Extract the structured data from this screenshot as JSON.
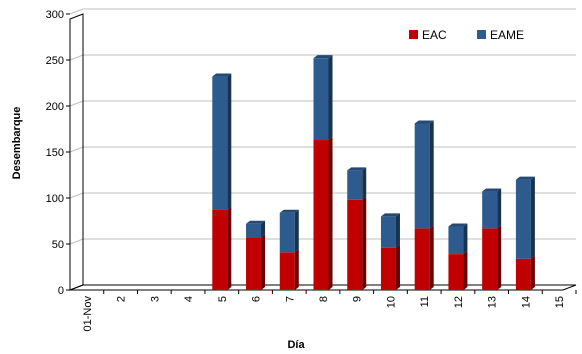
{
  "chart_data": {
    "type": "bar",
    "stacked": true,
    "style": "3d",
    "xlabel": "Día",
    "ylabel": "Desembarque",
    "categories": [
      "01-Nov",
      "2",
      "3",
      "4",
      "5",
      "6",
      "7",
      "8",
      "9",
      "10",
      "11",
      "12",
      "13",
      "14",
      "15"
    ],
    "ylim": [
      0,
      300
    ],
    "yticks": [
      0,
      50,
      100,
      150,
      200,
      250,
      300
    ],
    "grid": true,
    "legend_position": "top-right",
    "series": [
      {
        "name": "EAC",
        "color": "#C00000",
        "values": [
          0,
          0,
          0,
          0,
          87,
          57,
          41,
          163,
          98,
          46,
          67,
          39,
          67,
          34,
          0
        ]
      },
      {
        "name": "EAME",
        "color": "#2E5B8E",
        "values": [
          0,
          0,
          0,
          0,
          145,
          15,
          43,
          89,
          32,
          34,
          114,
          30,
          40,
          86,
          0
        ]
      }
    ]
  }
}
